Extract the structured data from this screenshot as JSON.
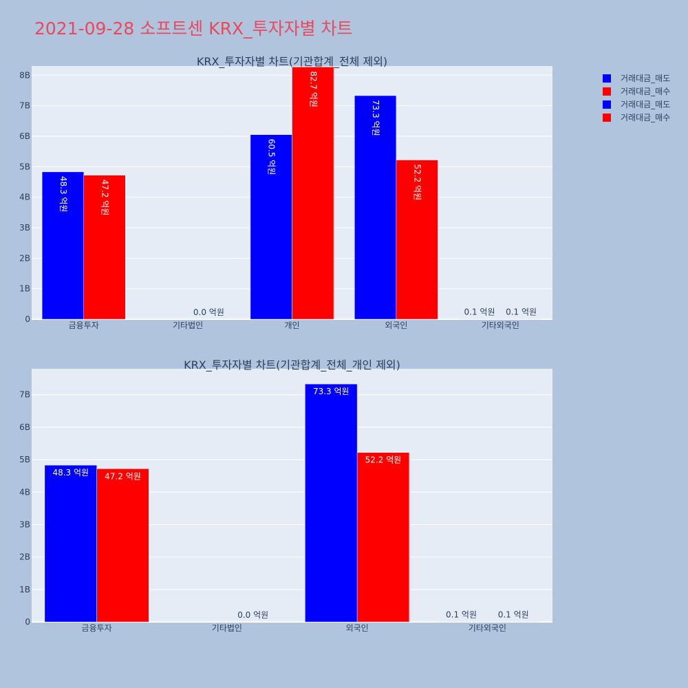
{
  "page": {
    "title": "2021-09-28 소프트센 KRX_투자자별 차트"
  },
  "legend": {
    "items": [
      {
        "label": "거래대금_매도",
        "color": "#0000ff"
      },
      {
        "label": "거래대금_매수",
        "color": "#ff0000"
      },
      {
        "label": "거래대금_매도",
        "color": "#0000ff"
      },
      {
        "label": "거래대금_매수",
        "color": "#ff0000"
      }
    ]
  },
  "chart_data": [
    {
      "type": "bar",
      "title": "KRX_투자자별 차트(기관합계_전체 제외)",
      "categories": [
        "금융투자",
        "기타법인",
        "개인",
        "외국인",
        "기타외국인"
      ],
      "yticks": [
        "0",
        "1B",
        "2B",
        "3B",
        "4B",
        "5B",
        "6B",
        "7B",
        "8B"
      ],
      "ylim": [
        0,
        8.3
      ],
      "label_orientation": "vertical",
      "series": [
        {
          "name": "거래대금_매도",
          "color": "#0000ff",
          "values": [
            4.83,
            0.0,
            6.05,
            7.33,
            0.01
          ],
          "labels": [
            "48.3 억원",
            "",
            "60.5 억원",
            "73.3 억원",
            "0.1 억원"
          ]
        },
        {
          "name": "거래대금_매수",
          "color": "#ff0000",
          "values": [
            4.72,
            0.0,
            8.27,
            5.22,
            0.01
          ],
          "labels": [
            "47.2 억원",
            "0.0 억원",
            "82.7 억원",
            "52.2 억원",
            "0.1 억원"
          ]
        }
      ]
    },
    {
      "type": "bar",
      "title": "KRX_투자자별 차트(기관합계_전체_개인 제외)",
      "categories": [
        "금융투자",
        "기타법인",
        "외국인",
        "기타외국인"
      ],
      "yticks": [
        "0",
        "1B",
        "2B",
        "3B",
        "4B",
        "5B",
        "6B",
        "7B"
      ],
      "ylim": [
        0,
        7.8
      ],
      "label_orientation": "horizontal",
      "series": [
        {
          "name": "거래대금_매도",
          "color": "#0000ff",
          "values": [
            4.83,
            0.0,
            7.33,
            0.01
          ],
          "labels": [
            "48.3 억원",
            "",
            "73.3 억원",
            "0.1 억원"
          ]
        },
        {
          "name": "거래대금_매수",
          "color": "#ff0000",
          "values": [
            4.72,
            0.0,
            5.22,
            0.01
          ],
          "labels": [
            "47.2 억원",
            "0.0 억원",
            "52.2 억원",
            "0.1 억원"
          ]
        }
      ]
    }
  ]
}
